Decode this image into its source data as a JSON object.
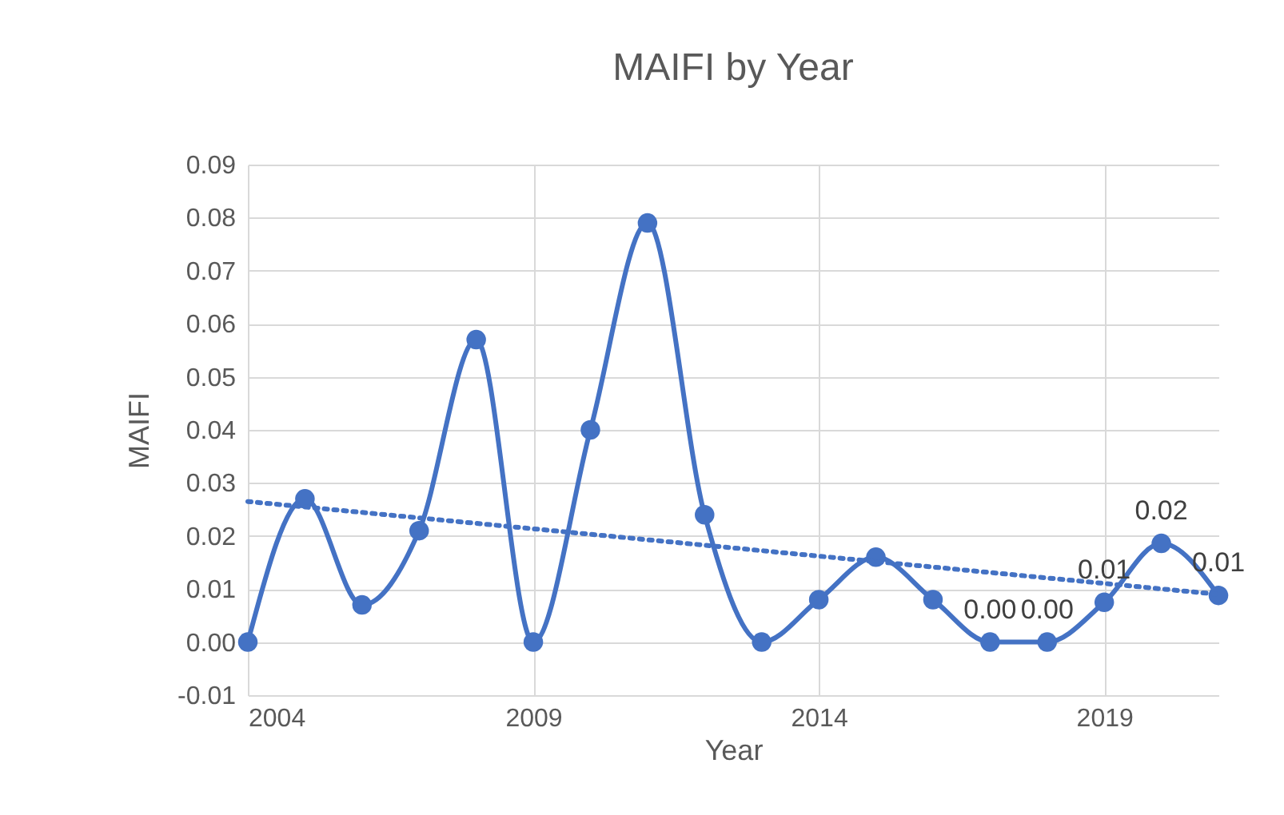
{
  "chart_data": {
    "type": "line",
    "title": "MAIFI by Year",
    "xlabel": "Year",
    "ylabel": "MAIFI",
    "x": [
      2004,
      2005,
      2006,
      2007,
      2008,
      2009,
      2010,
      2011,
      2012,
      2013,
      2014,
      2015,
      2016,
      2017,
      2018,
      2019,
      2020,
      2021
    ],
    "series": [
      {
        "color": "#4472c4",
        "marker": "circle",
        "line_style": "solid",
        "values": [
          0.0,
          0.027,
          0.007,
          0.021,
          0.057,
          0.0,
          0.04,
          0.079,
          0.024,
          0.0,
          0.008,
          0.016,
          0.008,
          0.0,
          0.0,
          0.0075,
          0.0186,
          0.0088
        ],
        "value_labels": [
          null,
          null,
          null,
          null,
          null,
          null,
          null,
          null,
          null,
          null,
          null,
          null,
          null,
          "0.00",
          "0.00",
          "0.01",
          "0.02",
          "0.01"
        ]
      },
      {
        "type": "line",
        "color": "#4472c4",
        "line_style": "dotted",
        "x": [
          2004,
          2021
        ],
        "values": [
          0.0265,
          0.009
        ]
      }
    ],
    "xlim": [
      2004,
      2021
    ],
    "xticks": [
      2004,
      2009,
      2014,
      2019
    ],
    "ylim": [
      -0.01,
      0.09
    ],
    "yticks": [
      {
        "value": -0.01,
        "label": "-0.01"
      },
      {
        "value": 0,
        "label": "0.00"
      },
      {
        "value": 0.01,
        "label": "0.01"
      },
      {
        "value": 0.02,
        "label": "0.02"
      },
      {
        "value": 0.03,
        "label": "0.03"
      },
      {
        "value": 0.04,
        "label": "0.04"
      },
      {
        "value": 0.05,
        "label": "0.05"
      },
      {
        "value": 0.06,
        "label": "0.06"
      },
      {
        "value": 0.07,
        "label": "0.07"
      },
      {
        "value": 0.08,
        "label": "0.08"
      },
      {
        "value": 0.09,
        "label": "0.09"
      }
    ],
    "grid": true
  }
}
